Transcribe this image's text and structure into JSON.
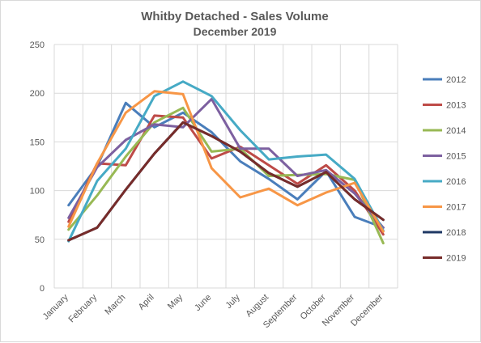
{
  "chart_data": {
    "type": "line",
    "title": "Whitby Detached - Sales Volume",
    "subtitle": "December 2019",
    "xlabel": "",
    "ylabel": "",
    "ylim": [
      0,
      250
    ],
    "yticks": [
      0,
      50,
      100,
      150,
      200,
      250
    ],
    "grid": true,
    "legend_position": "right",
    "categories": [
      "January",
      "February",
      "March",
      "April",
      "May",
      "June",
      "July",
      "August",
      "September",
      "October",
      "November",
      "December"
    ],
    "series": [
      {
        "name": "2012",
        "color": "#4a7ebb",
        "values": [
          85,
          125,
          190,
          165,
          180,
          160,
          130,
          112,
          91,
          120,
          73,
          62
        ]
      },
      {
        "name": "2013",
        "color": "#be4b48",
        "values": [
          68,
          128,
          126,
          177,
          175,
          133,
          145,
          126,
          107,
          126,
          100,
          55
        ]
      },
      {
        "name": "2014",
        "color": "#98b954",
        "values": [
          60,
          95,
          135,
          170,
          185,
          140,
          143,
          115,
          116,
          117,
          111,
          46
        ]
      },
      {
        "name": "2015",
        "color": "#7d60a0",
        "values": [
          72,
          124,
          152,
          168,
          165,
          194,
          143,
          143,
          115,
          121,
          97,
          62
        ]
      },
      {
        "name": "2016",
        "color": "#46aac5",
        "values": [
          48,
          110,
          143,
          197,
          212,
          197,
          162,
          132,
          135,
          137,
          112,
          59
        ]
      },
      {
        "name": "2017",
        "color": "#f79646",
        "values": [
          63,
          128,
          180,
          202,
          199,
          123,
          93,
          102,
          85,
          98,
          108,
          58
        ]
      },
      {
        "name": "2018",
        "color": "#1f3864",
        "values": [
          49,
          62,
          101,
          138,
          170,
          156,
          140,
          118,
          104,
          119,
          91,
          70
        ]
      },
      {
        "name": "2019",
        "color": "#772c2a",
        "values": [
          49,
          62,
          101,
          138,
          170,
          156,
          140,
          118,
          104,
          119,
          91,
          70
        ]
      }
    ]
  }
}
